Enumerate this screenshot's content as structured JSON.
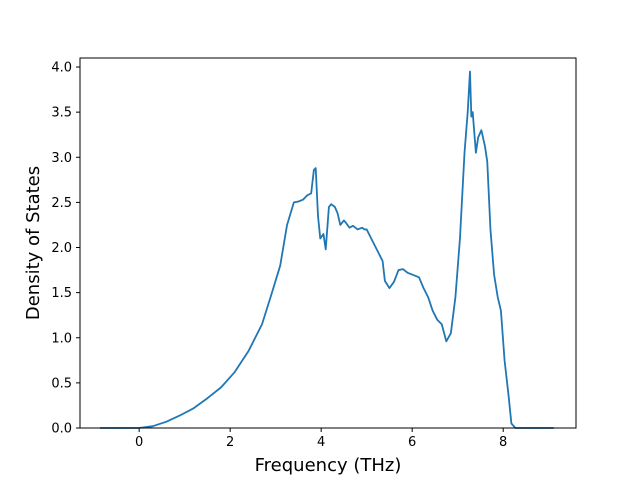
{
  "chart_data": {
    "type": "line",
    "title": "",
    "xlabel": "Frequency (THz)",
    "ylabel": "Density of States",
    "xlim": [
      -1.3,
      9.6
    ],
    "ylim": [
      0.0,
      4.1
    ],
    "grid": false,
    "legend": "none",
    "x_ticks": [
      "0",
      "2",
      "4",
      "6",
      "8"
    ],
    "y_ticks": [
      "0.0",
      "0.5",
      "1.0",
      "1.5",
      "2.0",
      "2.5",
      "3.0",
      "3.5",
      "4.0"
    ],
    "series": [
      {
        "color": "#1f77b4",
        "x": [
          -0.85,
          0.0,
          0.3,
          0.6,
          0.9,
          1.2,
          1.5,
          1.8,
          2.1,
          2.4,
          2.7,
          2.9,
          3.1,
          3.25,
          3.4,
          3.5,
          3.6,
          3.7,
          3.78,
          3.84,
          3.88,
          3.93,
          3.98,
          4.05,
          4.1,
          4.17,
          4.22,
          4.3,
          4.36,
          4.42,
          4.5,
          4.55,
          4.62,
          4.7,
          4.8,
          4.9,
          4.95,
          5.0,
          5.1,
          5.15,
          5.25,
          5.35,
          5.4,
          5.5,
          5.6,
          5.7,
          5.8,
          5.9,
          6.0,
          6.15,
          6.25,
          6.35,
          6.45,
          6.55,
          6.65,
          6.75,
          6.85,
          6.95,
          7.05,
          7.15,
          7.22,
          7.27,
          7.3,
          7.33,
          7.4,
          7.45,
          7.52,
          7.6,
          7.65,
          7.72,
          7.8,
          7.88,
          7.95,
          8.03,
          8.12,
          8.18,
          8.27,
          8.33,
          9.1
        ],
        "y": [
          0.0,
          0.0,
          0.02,
          0.07,
          0.14,
          0.22,
          0.33,
          0.45,
          0.62,
          0.85,
          1.15,
          1.47,
          1.8,
          2.25,
          2.5,
          2.51,
          2.53,
          2.58,
          2.6,
          2.86,
          2.88,
          2.35,
          2.1,
          2.15,
          1.98,
          2.45,
          2.48,
          2.45,
          2.38,
          2.25,
          2.3,
          2.27,
          2.22,
          2.24,
          2.2,
          2.22,
          2.2,
          2.2,
          2.1,
          2.05,
          1.95,
          1.85,
          1.63,
          1.55,
          1.62,
          1.75,
          1.76,
          1.72,
          1.7,
          1.67,
          1.55,
          1.45,
          1.3,
          1.2,
          1.15,
          0.96,
          1.05,
          1.45,
          2.1,
          3.05,
          3.5,
          3.95,
          3.45,
          3.5,
          3.05,
          3.22,
          3.3,
          3.12,
          2.95,
          2.2,
          1.7,
          1.45,
          1.3,
          0.75,
          0.35,
          0.05,
          0.0,
          0.0,
          0.0
        ]
      }
    ]
  }
}
